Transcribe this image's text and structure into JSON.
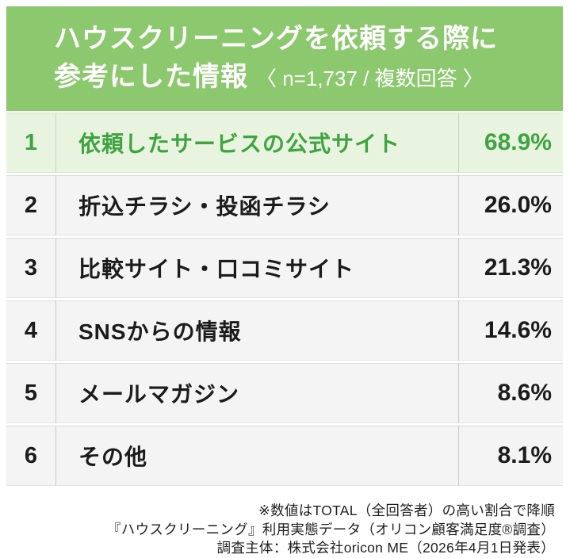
{
  "header": {
    "title_line1": "ハウスクリーニングを依頼する際に",
    "title_line2": "参考にした情報",
    "subtitle": "〈 n=1,737 / 複数回答 〉"
  },
  "table": {
    "rows": [
      {
        "rank": "1",
        "label": "依頼したサービスの公式サイト",
        "value": "68.9%"
      },
      {
        "rank": "2",
        "label": "折込チラシ・投函チラシ",
        "value": "26.0%"
      },
      {
        "rank": "3",
        "label": "比較サイト・口コミサイト",
        "value": "21.3%"
      },
      {
        "rank": "4",
        "label": "SNSからの情報",
        "value": "14.6%"
      },
      {
        "rank": "5",
        "label": "メールマガジン",
        "value": "8.6%"
      },
      {
        "rank": "6",
        "label": "その他",
        "value": "8.1%"
      }
    ]
  },
  "footer": {
    "note1": "※数値はTOTAL（全回答者）の高い割合で降順",
    "note2": "『ハウスクリーニング』利用実態データ（オリコン顧客満足度®調査）",
    "note3": "調査主体：株式会社oricon ME（2026年4月1日発表）"
  },
  "colors": {
    "banner_bg": "#8CC86D",
    "banner_text": "#FFFFFF",
    "highlight_bg": "#E8F4E0",
    "highlight_text": "#3FA440",
    "row_bg": "#F4F4F4",
    "row_text": "#1B1B1B"
  },
  "chart_data": {
    "type": "table",
    "title": "ハウスクリーニングを依頼する際に参考にした情報",
    "sample_note": "n=1,737 / 複数回答",
    "categories": [
      "依頼したサービスの公式サイト",
      "折込チラシ・投函チラシ",
      "比較サイト・口コミサイト",
      "SNSからの情報",
      "メールマガジン",
      "その他"
    ],
    "values": [
      68.9,
      26.0,
      21.3,
      14.6,
      8.6,
      8.1
    ],
    "unit": "%",
    "sort": "descending",
    "source": "株式会社oricon ME（2026年4月1日発表）"
  }
}
